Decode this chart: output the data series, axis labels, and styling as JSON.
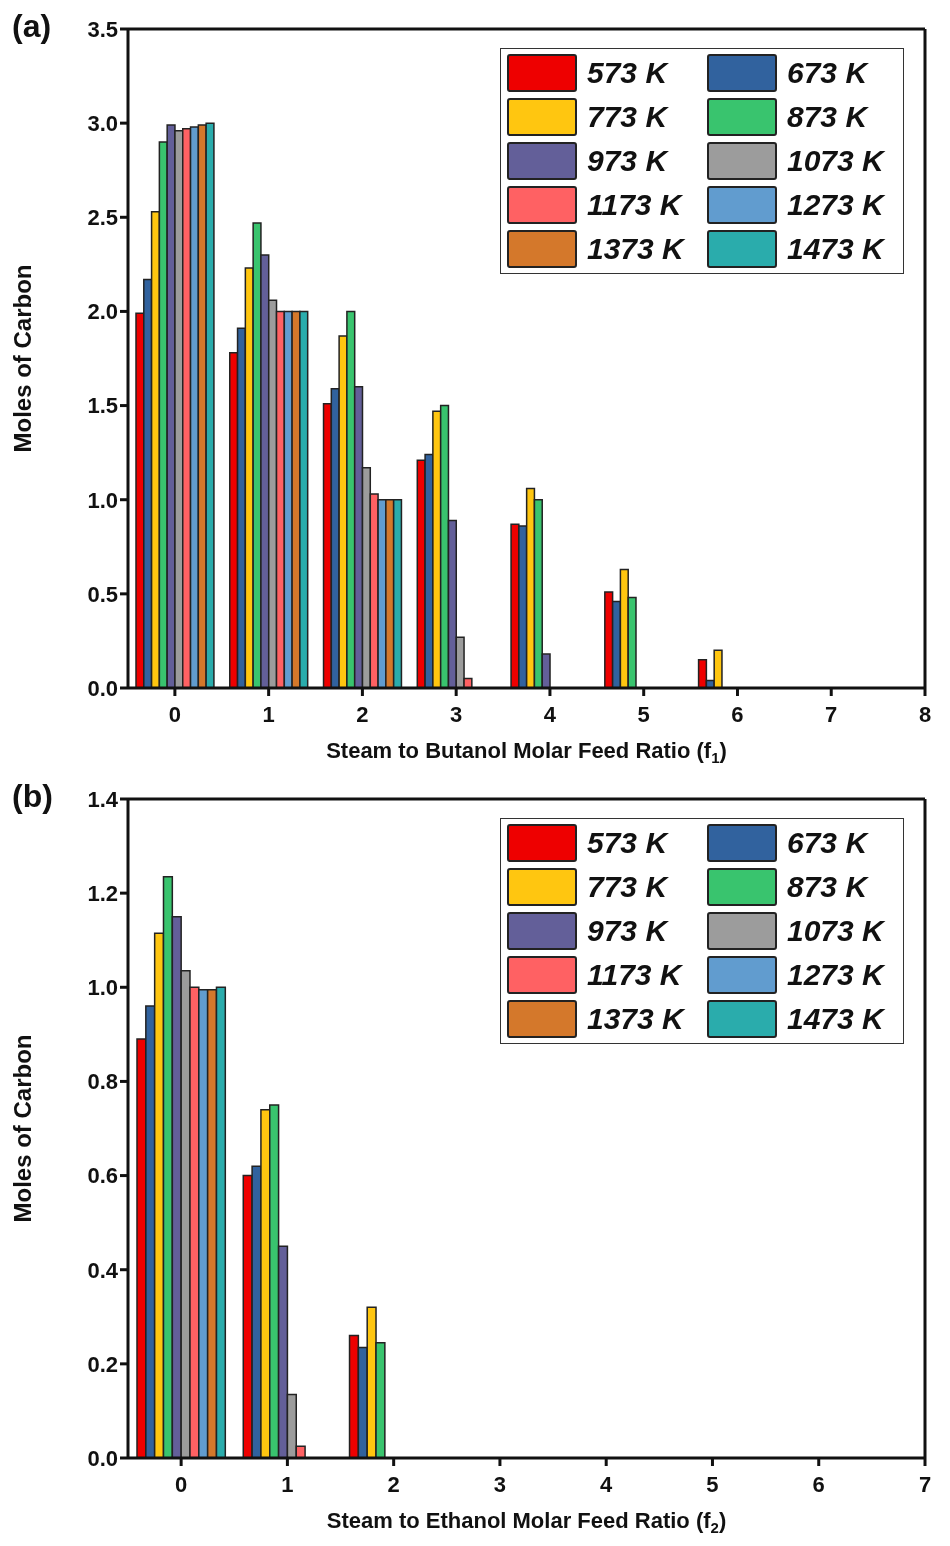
{
  "chart_data": [
    {
      "type": "bar",
      "title": "(a)",
      "xlabel": "Steam to Butanol Molar Feed Ratio (f$_{1}$)",
      "ylabel": "Moles of Carbon",
      "x": [
        0,
        1,
        2,
        3,
        4,
        5,
        6
      ],
      "xlim": [
        -0.5,
        8
      ],
      "xticks": [
        0,
        1,
        2,
        3,
        4,
        5,
        6,
        7,
        8
      ],
      "ylim": [
        0,
        3.5
      ],
      "yticks": [
        {
          "value": 0,
          "label": "0.0"
        },
        {
          "value": 0.5,
          "label": "0.5"
        },
        {
          "value": 1,
          "label": "1.0"
        },
        {
          "value": 1.5,
          "label": "1.5"
        },
        {
          "value": 2,
          "label": "2.0"
        },
        {
          "value": 2.5,
          "label": "2.5"
        },
        {
          "value": 3,
          "label": "3.0"
        },
        {
          "value": 3.5,
          "label": "3.5"
        }
      ],
      "legend": "top right",
      "series": [
        {
          "name": "573 K",
          "color": "#ee0000",
          "values": [
            1.99,
            1.78,
            1.51,
            1.21,
            0.87,
            0.51,
            0.15
          ]
        },
        {
          "name": "673 K",
          "color": "#31629e",
          "values": [
            2.17,
            1.91,
            1.59,
            1.24,
            0.86,
            0.46,
            0.04
          ]
        },
        {
          "name": "773 K",
          "color": "#ffc610",
          "values": [
            2.53,
            2.23,
            1.87,
            1.47,
            1.06,
            0.63,
            0.2
          ]
        },
        {
          "name": "873 K",
          "color": "#39c46e",
          "values": [
            2.9,
            2.47,
            2.0,
            1.5,
            1.0,
            0.48,
            0
          ]
        },
        {
          "name": "973 K",
          "color": "#635f99",
          "values": [
            2.99,
            2.3,
            1.6,
            0.89,
            0.18,
            0,
            0
          ]
        },
        {
          "name": "1073 K",
          "color": "#9c9c9c",
          "values": [
            2.96,
            2.06,
            1.17,
            0.27,
            0,
            0,
            0
          ]
        },
        {
          "name": "1173 K",
          "color": "#ff6163",
          "values": [
            2.97,
            2.0,
            1.03,
            0.05,
            0,
            0,
            0
          ]
        },
        {
          "name": "1273 K",
          "color": "#619ccf",
          "values": [
            2.98,
            2.0,
            1.0,
            0,
            0,
            0,
            0
          ]
        },
        {
          "name": "1373 K",
          "color": "#d4782b",
          "values": [
            2.99,
            2.0,
            1.0,
            0,
            0,
            0,
            0
          ]
        },
        {
          "name": "1473 K",
          "color": "#2aacac",
          "values": [
            3.0,
            2.0,
            1.0,
            0,
            0,
            0,
            0
          ]
        }
      ]
    },
    {
      "type": "bar",
      "title": "(b)",
      "xlabel": "Steam to Ethanol Molar Feed Ratio (f$_{2}$)",
      "ylabel": "Moles of Carbon",
      "x": [
        0,
        1,
        2
      ],
      "xlim": [
        -0.5,
        7
      ],
      "xticks": [
        0,
        1,
        2,
        3,
        4,
        5,
        6,
        7
      ],
      "ylim": [
        0,
        1.4
      ],
      "yticks": [
        {
          "value": 0,
          "label": "0.0"
        },
        {
          "value": 0.2,
          "label": "0.2"
        },
        {
          "value": 0.4,
          "label": "0.4"
        },
        {
          "value": 0.6,
          "label": "0.6"
        },
        {
          "value": 0.8,
          "label": "0.8"
        },
        {
          "value": 1,
          "label": "1.0"
        },
        {
          "value": 1.2,
          "label": "1.2"
        },
        {
          "value": 1.4,
          "label": "1.4"
        }
      ],
      "legend": "top right",
      "series": [
        {
          "name": "573 K",
          "color": "#ee0000",
          "values": [
            0.89,
            0.6,
            0.26
          ]
        },
        {
          "name": "673 K",
          "color": "#31629e",
          "values": [
            0.96,
            0.62,
            0.235
          ]
        },
        {
          "name": "773 K",
          "color": "#ffc610",
          "values": [
            1.115,
            0.74,
            0.32
          ]
        },
        {
          "name": "873 K",
          "color": "#39c46e",
          "values": [
            1.235,
            0.75,
            0.245
          ]
        },
        {
          "name": "973 K",
          "color": "#635f99",
          "values": [
            1.15,
            0.45,
            0
          ]
        },
        {
          "name": "1073 K",
          "color": "#9c9c9c",
          "values": [
            1.035,
            0.135,
            0
          ]
        },
        {
          "name": "1173 K",
          "color": "#ff6163",
          "values": [
            1.0,
            0.025,
            0
          ]
        },
        {
          "name": "1273 K",
          "color": "#619ccf",
          "values": [
            0.995,
            0,
            0
          ]
        },
        {
          "name": "1373 K",
          "color": "#d4782b",
          "values": [
            0.995,
            0,
            0
          ]
        },
        {
          "name": "1473 K",
          "color": "#2aacac",
          "values": [
            1.0,
            0,
            0
          ]
        }
      ]
    }
  ]
}
